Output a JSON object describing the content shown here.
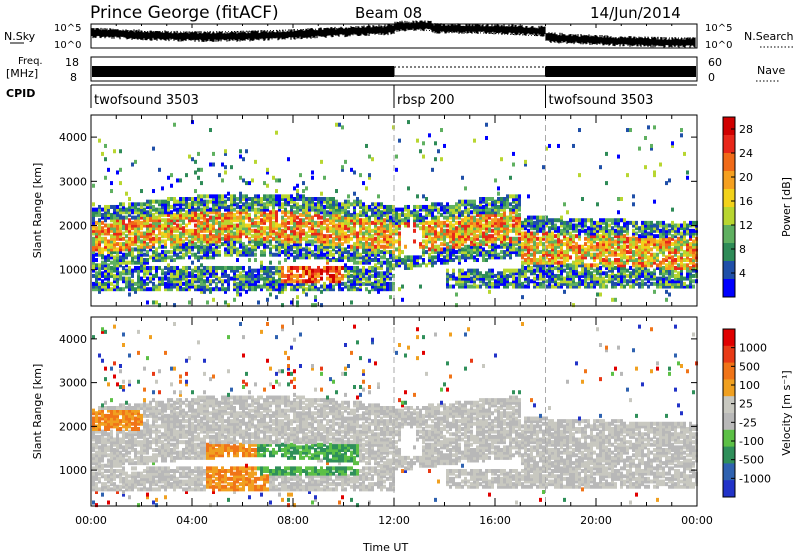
{
  "header": {
    "station": "Prince George (fitACF)",
    "beam": "Beam 08",
    "date": "14/Jun/2014"
  },
  "strip_labels": {
    "nsky": "N.Sky",
    "nsky_tick_top": "10^5",
    "nsky_tick_bottom": "10^0",
    "nsearch": "N.Search",
    "nsearch_tick_top": "10^5",
    "nsearch_tick_bottom": "10^0",
    "freq_line1": "Freq.",
    "freq_line2": "[MHz]",
    "freq_tick_top": "18",
    "freq_tick_bottom": "8",
    "nave": "Nave",
    "nave_tick_top": "60",
    "nave_tick_bottom": "0",
    "cpid": "CPID"
  },
  "cpid_segments": [
    {
      "label": "twofsound 3503",
      "start_hour": 0
    },
    {
      "label": "rbsp 200",
      "start_hour": 12
    },
    {
      "label": "twofsound 3503",
      "start_hour": 18
    }
  ],
  "colors": {
    "power_scale": [
      "#0000ff",
      "#1f4fa8",
      "#2e8b57",
      "#5fb060",
      "#b8d630",
      "#f2d21a",
      "#f5a020",
      "#f06a18",
      "#e8271a",
      "#d00000"
    ],
    "velocity_scale": [
      "#2233c8",
      "#2f62b0",
      "#2f8f5a",
      "#5cc046",
      "#b8b8b8",
      "#c8c8c0",
      "#f0a020",
      "#f07418",
      "#e83a16",
      "#e00000"
    ],
    "ground_scatter": "#b8b8b0",
    "dashed_line": "#aaaaaa"
  },
  "chart_data": [
    {
      "type": "line",
      "title": "N.Sky / N.Search",
      "xlabel": "",
      "ylabel": "N.Sky",
      "y_scale": "log",
      "ylim": [
        1,
        100000
      ],
      "xlim_hours": [
        0,
        24
      ]
    },
    {
      "type": "line",
      "title": "Freq / Nave",
      "ylabel": "Freq. [MHz]",
      "ylim": [
        8,
        18
      ],
      "y2label": "Nave",
      "y2lim": [
        0,
        60
      ],
      "xlim_hours": [
        0,
        24
      ]
    },
    {
      "type": "heatmap",
      "ylabel": "Slant Range [km]",
      "ylim": [
        180,
        4500
      ],
      "yticks": [
        1000,
        2000,
        3000,
        4000
      ],
      "xlim_hours": [
        0,
        24
      ],
      "colorbar": {
        "label": "Power [dB]",
        "ticks": [
          4,
          8,
          12,
          16,
          20,
          24,
          28
        ],
        "range": [
          0,
          30
        ]
      }
    },
    {
      "type": "heatmap",
      "ylabel": "Slant Range [km]",
      "ylim": [
        180,
        4500
      ],
      "yticks": [
        1000,
        2000,
        3000,
        4000
      ],
      "xlim_hours": [
        0,
        24
      ],
      "colorbar": {
        "label": "Velocity [m s⁻¹]",
        "ticks": [
          1000,
          500,
          100,
          25,
          -25,
          -100,
          -500,
          -1000
        ]
      }
    }
  ],
  "x_axis": {
    "label": "Time UT",
    "ticks": [
      "00:00",
      "04:00",
      "08:00",
      "12:00",
      "16:00",
      "20:00",
      "00:00"
    ]
  }
}
